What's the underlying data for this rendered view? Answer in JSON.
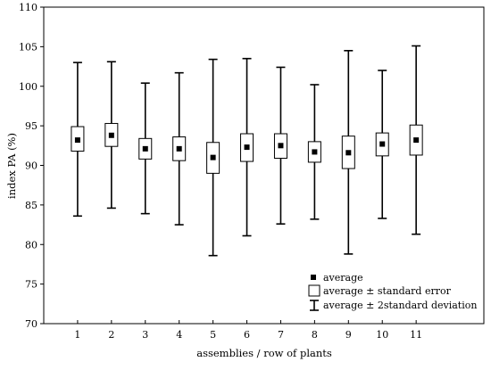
{
  "chart_data": {
    "type": "box",
    "xlabel": "assemblies / row of plants",
    "ylabel": "index PA (%)",
    "xlim": [
      0,
      13
    ],
    "ylim": [
      70,
      110
    ],
    "y_ticks": [
      70,
      75,
      80,
      85,
      90,
      95,
      100,
      105,
      110
    ],
    "grid": false,
    "legend_position": "bottom-right",
    "legend": {
      "average": "average",
      "se": "average ± standard error",
      "sd": "average ± 2standard deviation"
    },
    "categories": [
      "1",
      "2",
      "3",
      "4",
      "5",
      "6",
      "7",
      "8",
      "9",
      "10",
      "11"
    ],
    "mean": [
      93.2,
      93.8,
      92.1,
      92.1,
      91.0,
      92.3,
      92.5,
      91.7,
      91.6,
      92.7,
      93.2
    ],
    "se_low": [
      91.8,
      92.4,
      90.8,
      90.6,
      89.0,
      90.5,
      90.9,
      90.4,
      89.6,
      91.2,
      91.3
    ],
    "se_high": [
      94.9,
      95.3,
      93.4,
      93.6,
      92.9,
      94.0,
      94.0,
      93.0,
      93.7,
      94.1,
      95.1
    ],
    "sd_low": [
      83.6,
      84.6,
      83.9,
      82.5,
      78.6,
      81.1,
      82.6,
      83.2,
      78.8,
      83.3,
      81.3
    ],
    "sd_high": [
      103.0,
      103.1,
      100.4,
      101.7,
      103.4,
      103.5,
      102.4,
      100.2,
      104.5,
      102.0,
      105.1
    ]
  }
}
